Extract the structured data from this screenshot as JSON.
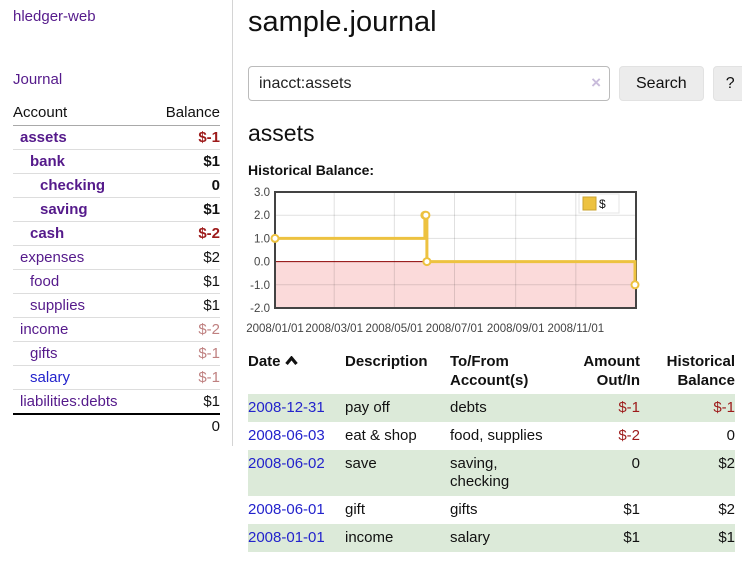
{
  "sidebar": {
    "brand": "hledger-web",
    "nav": {
      "journal": "Journal"
    },
    "accounts_table": {
      "headers": {
        "account": "Account",
        "balance": "Balance"
      },
      "rows": [
        {
          "name": "assets",
          "depth": 1,
          "bold": true,
          "link": "purple",
          "balance": "$-1",
          "balance_style": "neg-strong"
        },
        {
          "name": "bank",
          "depth": 2,
          "bold": true,
          "link": "purple",
          "balance": "$1",
          "balance_style": "pos"
        },
        {
          "name": "checking",
          "depth": 3,
          "bold": true,
          "link": "purple",
          "balance": "0",
          "balance_style": "pos"
        },
        {
          "name": "saving",
          "depth": 3,
          "bold": true,
          "link": "purple",
          "balance": "$1",
          "balance_style": "pos"
        },
        {
          "name": "cash",
          "depth": 2,
          "bold": true,
          "link": "purple",
          "balance": "$-2",
          "balance_style": "neg-strong"
        },
        {
          "name": "expenses",
          "depth": 1,
          "bold": false,
          "link": "purple",
          "balance": "$2",
          "balance_style": "pos"
        },
        {
          "name": "food",
          "depth": 2,
          "bold": false,
          "link": "purple",
          "balance": "$1",
          "balance_style": "pos"
        },
        {
          "name": "supplies",
          "depth": 2,
          "bold": false,
          "link": "purple",
          "balance": "$1",
          "balance_style": "pos"
        },
        {
          "name": "income",
          "depth": 1,
          "bold": false,
          "link": "purple",
          "balance": "$-2",
          "balance_style": "neg-soft"
        },
        {
          "name": "gifts",
          "depth": 2,
          "bold": false,
          "link": "purple",
          "balance": "$-1",
          "balance_style": "neg-soft"
        },
        {
          "name": "salary",
          "depth": 2,
          "bold": false,
          "link": "blue",
          "balance": "$-1",
          "balance_style": "neg-soft"
        },
        {
          "name": "liabilities:debts",
          "depth": 1,
          "bold": false,
          "link": "purple",
          "balance": "$1",
          "balance_style": "pos"
        }
      ],
      "total": "0"
    }
  },
  "header": {
    "title": "sample.journal"
  },
  "search": {
    "value": "inacct:assets",
    "clear_label": "×",
    "button": "Search",
    "help_button": "?"
  },
  "account_page": {
    "title": "assets",
    "chart_label": "Historical Balance:"
  },
  "chart_data": {
    "type": "line",
    "step": true,
    "title": "Historical Balance",
    "xlabel": "",
    "ylabel": "",
    "ylim": [
      -2,
      3
    ],
    "xlim": [
      "2008-01-01",
      "2009-01-01"
    ],
    "y_ticks": [
      3.0,
      2.0,
      1.0,
      0.0,
      -1.0,
      -2.0
    ],
    "x_ticks": [
      "2008/01/01",
      "2008/03/01",
      "2008/05/01",
      "2008/07/01",
      "2008/09/01",
      "2008/11/01"
    ],
    "grid": true,
    "legend": {
      "position": "top-right",
      "label": "$"
    },
    "series": [
      {
        "name": "$",
        "color": "#edc240",
        "points": [
          [
            "2008-01-01",
            1
          ],
          [
            "2008-06-01",
            2
          ],
          [
            "2008-06-02",
            2
          ],
          [
            "2008-06-03",
            0
          ],
          [
            "2008-12-31",
            -1
          ]
        ]
      }
    ],
    "negative_region_color": "#fbdada",
    "zero_line_color": "#8b0000"
  },
  "register": {
    "columns": [
      "Date",
      "Description",
      "To/From Account(s)",
      "Amount Out/In",
      "Historical Balance"
    ],
    "rows": [
      {
        "date": "2008-12-31",
        "description": "pay off",
        "accounts": "debts",
        "amount": "$-1",
        "amount_negative": true,
        "balance": "$-1",
        "balance_negative": true
      },
      {
        "date": "2008-06-03",
        "description": "eat & shop",
        "accounts": "food, supplies",
        "amount": "$-2",
        "amount_negative": true,
        "balance": "0",
        "balance_negative": false
      },
      {
        "date": "2008-06-02",
        "description": "save",
        "accounts": "saving, checking",
        "amount": "0",
        "amount_negative": false,
        "balance": "$2",
        "balance_negative": false
      },
      {
        "date": "2008-06-01",
        "description": "gift",
        "accounts": "gifts",
        "amount": "$1",
        "amount_negative": false,
        "balance": "$2",
        "balance_negative": false
      },
      {
        "date": "2008-01-01",
        "description": "income",
        "accounts": "salary",
        "amount": "$1",
        "amount_negative": false,
        "balance": "$1",
        "balance_negative": false
      }
    ]
  },
  "colors": {
    "brand_purple": "#551a8b",
    "link_blue": "#2323cc",
    "negative_strong": "#9d1a1a",
    "negative_soft": "#bf8080",
    "row_green": "#dcead9",
    "chart_yellow": "#edc240",
    "chart_negative_bg": "#fbdada",
    "zero_line": "#8b0000"
  }
}
